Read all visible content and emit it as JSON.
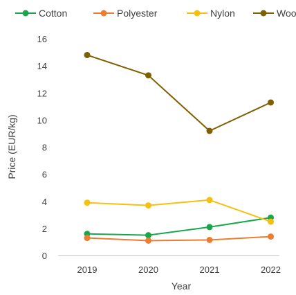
{
  "chart_data": {
    "type": "line",
    "title": "",
    "xlabel": "Year",
    "ylabel": "Price (EUR/kg)",
    "categories": [
      "2019",
      "2020",
      "2021",
      "2022"
    ],
    "ylim": [
      0,
      16
    ],
    "yticks": [
      0,
      2,
      4,
      6,
      8,
      10,
      12,
      14,
      16
    ],
    "grid": false,
    "legend_position": "top",
    "series": [
      {
        "name": "Cotton",
        "color": "#1aa64b",
        "values": [
          1.6,
          1.5,
          2.1,
          2.8
        ]
      },
      {
        "name": "Polyester",
        "color": "#ed7d31",
        "values": [
          1.3,
          1.1,
          1.15,
          1.4
        ]
      },
      {
        "name": "Nylon",
        "color": "#f5c010",
        "values": [
          3.9,
          3.7,
          4.1,
          2.5
        ]
      },
      {
        "name": "Wool",
        "color": "#7f5f00",
        "values": [
          14.8,
          13.3,
          9.2,
          11.3
        ]
      }
    ]
  }
}
